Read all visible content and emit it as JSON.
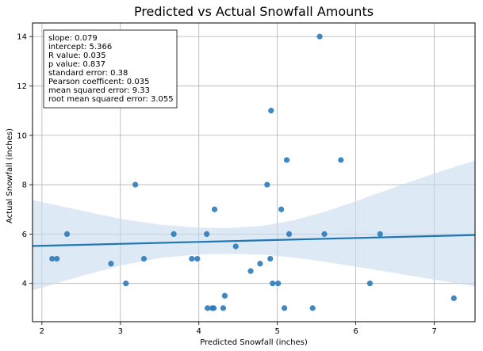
{
  "chart_data": {
    "type": "scatter",
    "title": "Predicted vs Actual Snowfall Amounts",
    "xlabel": "Predicted Snowfall (inches)",
    "ylabel": "Actual Snowfall (inches)",
    "xlim": [
      1.88,
      7.52
    ],
    "ylim": [
      2.45,
      14.55
    ],
    "xticks": [
      2,
      3,
      4,
      5,
      6,
      7
    ],
    "yticks": [
      4,
      6,
      8,
      10,
      12,
      14
    ],
    "grid": true,
    "point_color": "#2b7bba",
    "line_color": "#1f77b4",
    "band_color": "#c6dbef",
    "regression": {
      "slope": 0.079,
      "intercept": 5.366,
      "ci_band": [
        {
          "x": 1.88,
          "lo": 3.72,
          "hi": 7.38
        },
        {
          "x": 2.5,
          "lo": 4.3,
          "hi": 6.95
        },
        {
          "x": 3.0,
          "lo": 4.72,
          "hi": 6.62
        },
        {
          "x": 3.5,
          "lo": 5.03,
          "hi": 6.38
        },
        {
          "x": 4.0,
          "lo": 5.18,
          "hi": 6.26
        },
        {
          "x": 4.4,
          "lo": 5.2,
          "hi": 6.24
        },
        {
          "x": 4.8,
          "lo": 5.17,
          "hi": 6.33
        },
        {
          "x": 5.2,
          "lo": 5.05,
          "hi": 6.55
        },
        {
          "x": 5.6,
          "lo": 4.88,
          "hi": 6.9
        },
        {
          "x": 6.0,
          "lo": 4.68,
          "hi": 7.33
        },
        {
          "x": 6.5,
          "lo": 4.42,
          "hi": 7.9
        },
        {
          "x": 7.0,
          "lo": 4.15,
          "hi": 8.45
        },
        {
          "x": 7.52,
          "lo": 3.88,
          "hi": 8.98
        }
      ]
    },
    "points": [
      {
        "x": 2.13,
        "y": 5.0
      },
      {
        "x": 2.19,
        "y": 5.0
      },
      {
        "x": 2.32,
        "y": 6.0
      },
      {
        "x": 2.88,
        "y": 4.8
      },
      {
        "x": 3.07,
        "y": 4.0
      },
      {
        "x": 3.19,
        "y": 8.0
      },
      {
        "x": 3.3,
        "y": 5.0
      },
      {
        "x": 3.68,
        "y": 6.0
      },
      {
        "x": 3.91,
        "y": 5.0
      },
      {
        "x": 3.98,
        "y": 5.0
      },
      {
        "x": 4.1,
        "y": 6.0
      },
      {
        "x": 4.11,
        "y": 3.0
      },
      {
        "x": 4.17,
        "y": 3.0
      },
      {
        "x": 4.19,
        "y": 3.0
      },
      {
        "x": 4.2,
        "y": 7.0
      },
      {
        "x": 4.31,
        "y": 3.0
      },
      {
        "x": 4.33,
        "y": 3.5
      },
      {
        "x": 4.47,
        "y": 5.5
      },
      {
        "x": 4.66,
        "y": 4.5
      },
      {
        "x": 4.78,
        "y": 4.8
      },
      {
        "x": 4.87,
        "y": 8.0
      },
      {
        "x": 4.91,
        "y": 5.0
      },
      {
        "x": 4.92,
        "y": 11.0
      },
      {
        "x": 4.94,
        "y": 4.0
      },
      {
        "x": 5.01,
        "y": 4.0
      },
      {
        "x": 5.05,
        "y": 7.0
      },
      {
        "x": 5.09,
        "y": 3.0
      },
      {
        "x": 5.12,
        "y": 9.0
      },
      {
        "x": 5.15,
        "y": 6.0
      },
      {
        "x": 5.45,
        "y": 3.0
      },
      {
        "x": 5.54,
        "y": 14.0
      },
      {
        "x": 5.6,
        "y": 6.0
      },
      {
        "x": 5.81,
        "y": 9.0
      },
      {
        "x": 6.18,
        "y": 4.0
      },
      {
        "x": 6.31,
        "y": 6.0
      },
      {
        "x": 7.25,
        "y": 3.4
      }
    ]
  },
  "stats_box": [
    "slope: 0.079",
    "intercept: 5.366",
    "R value: 0.035",
    "p value: 0.837",
    "standard error: 0.38",
    "Pearson coefficent: 0.035",
    "mean squared error: 9.33",
    "root mean squared error: 3.055"
  ]
}
